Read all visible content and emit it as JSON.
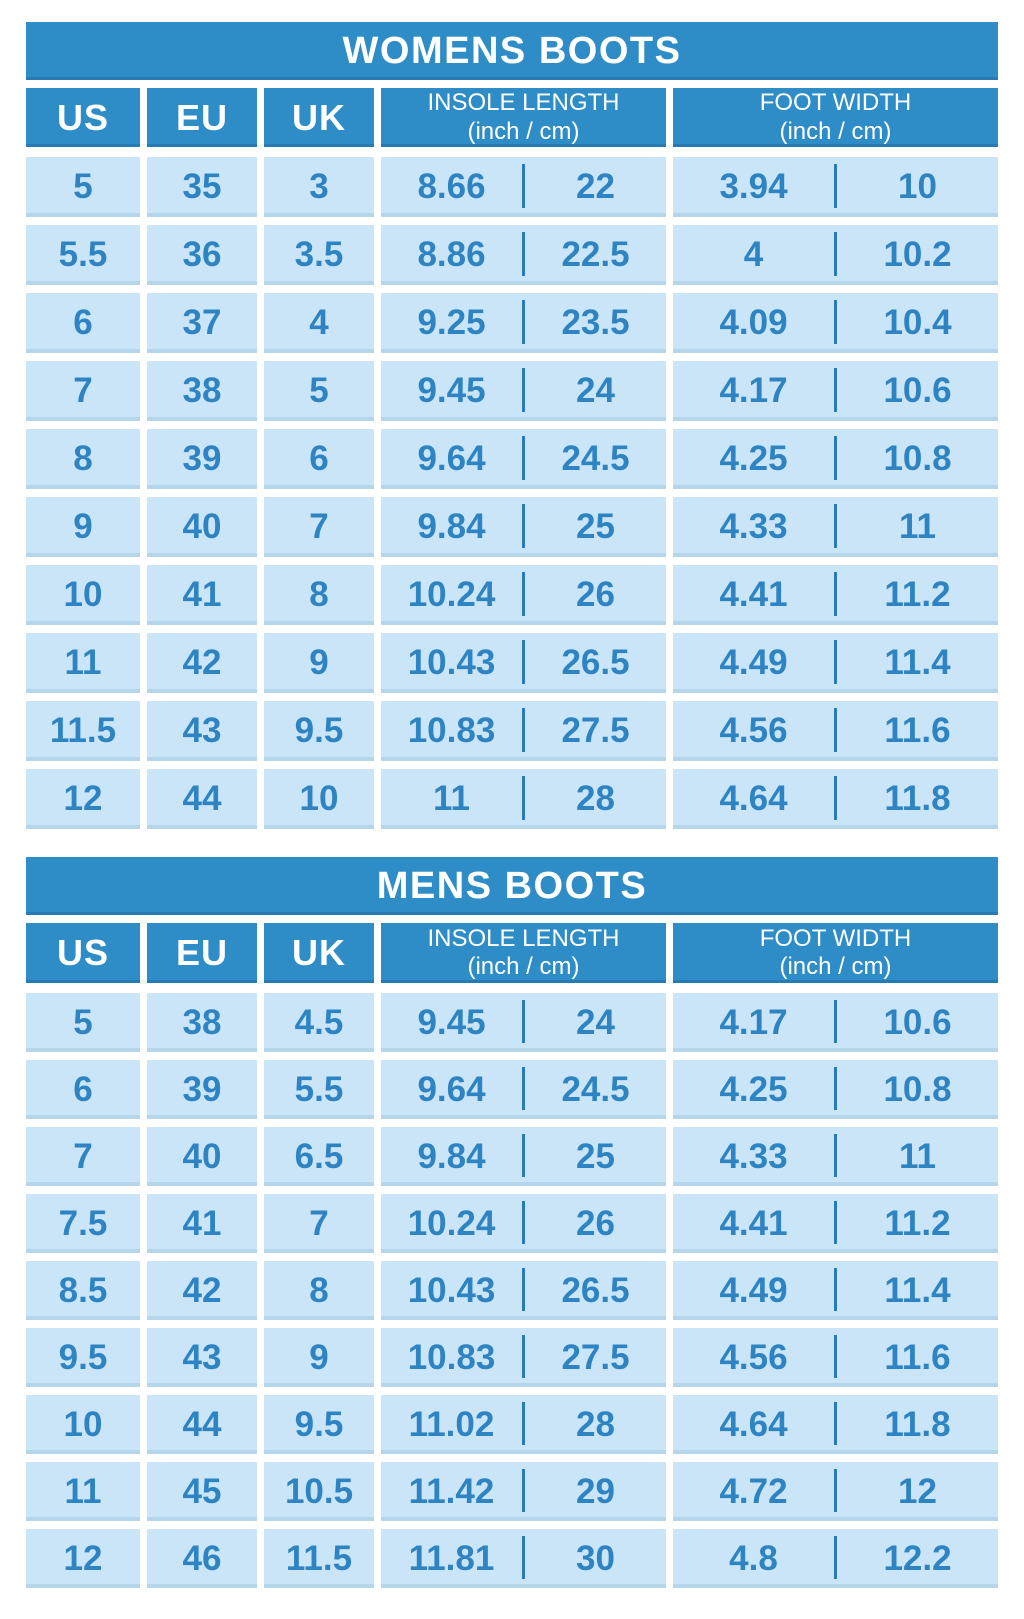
{
  "colors": {
    "header_blue": "#2e8cc7",
    "cell_light_blue": "#c9e5f7",
    "text_blue": "#2e84c2",
    "page_background": "#ffffff"
  },
  "tables": [
    {
      "title": "WOMENS BOOTS",
      "headers": {
        "us": "US",
        "eu": "EU",
        "uk": "UK",
        "insole": "INSOLE LENGTH",
        "insole_sub": "(inch / cm)",
        "foot": "FOOT WIDTH",
        "foot_sub": "(inch / cm)"
      },
      "rows": [
        {
          "us": "5",
          "eu": "35",
          "uk": "3",
          "insole_inch": "8.66",
          "insole_cm": "22",
          "width_inch": "3.94",
          "width_cm": "10"
        },
        {
          "us": "5.5",
          "eu": "36",
          "uk": "3.5",
          "insole_inch": "8.86",
          "insole_cm": "22.5",
          "width_inch": "4",
          "width_cm": "10.2"
        },
        {
          "us": "6",
          "eu": "37",
          "uk": "4",
          "insole_inch": "9.25",
          "insole_cm": "23.5",
          "width_inch": "4.09",
          "width_cm": "10.4"
        },
        {
          "us": "7",
          "eu": "38",
          "uk": "5",
          "insole_inch": "9.45",
          "insole_cm": "24",
          "width_inch": "4.17",
          "width_cm": "10.6"
        },
        {
          "us": "8",
          "eu": "39",
          "uk": "6",
          "insole_inch": "9.64",
          "insole_cm": "24.5",
          "width_inch": "4.25",
          "width_cm": "10.8"
        },
        {
          "us": "9",
          "eu": "40",
          "uk": "7",
          "insole_inch": "9.84",
          "insole_cm": "25",
          "width_inch": "4.33",
          "width_cm": "11"
        },
        {
          "us": "10",
          "eu": "41",
          "uk": "8",
          "insole_inch": "10.24",
          "insole_cm": "26",
          "width_inch": "4.41",
          "width_cm": "11.2"
        },
        {
          "us": "11",
          "eu": "42",
          "uk": "9",
          "insole_inch": "10.43",
          "insole_cm": "26.5",
          "width_inch": "4.49",
          "width_cm": "11.4"
        },
        {
          "us": "11.5",
          "eu": "43",
          "uk": "9.5",
          "insole_inch": "10.83",
          "insole_cm": "27.5",
          "width_inch": "4.56",
          "width_cm": "11.6"
        },
        {
          "us": "12",
          "eu": "44",
          "uk": "10",
          "insole_inch": "11",
          "insole_cm": "28",
          "width_inch": "4.64",
          "width_cm": "11.8"
        }
      ]
    },
    {
      "title": "MENS BOOTS",
      "headers": {
        "us": "US",
        "eu": "EU",
        "uk": "UK",
        "insole": "INSOLE LENGTH",
        "insole_sub": "(inch / cm)",
        "foot": "FOOT WIDTH",
        "foot_sub": "(inch / cm)"
      },
      "rows": [
        {
          "us": "5",
          "eu": "38",
          "uk": "4.5",
          "insole_inch": "9.45",
          "insole_cm": "24",
          "width_inch": "4.17",
          "width_cm": "10.6"
        },
        {
          "us": "6",
          "eu": "39",
          "uk": "5.5",
          "insole_inch": "9.64",
          "insole_cm": "24.5",
          "width_inch": "4.25",
          "width_cm": "10.8"
        },
        {
          "us": "7",
          "eu": "40",
          "uk": "6.5",
          "insole_inch": "9.84",
          "insole_cm": "25",
          "width_inch": "4.33",
          "width_cm": "11"
        },
        {
          "us": "7.5",
          "eu": "41",
          "uk": "7",
          "insole_inch": "10.24",
          "insole_cm": "26",
          "width_inch": "4.41",
          "width_cm": "11.2"
        },
        {
          "us": "8.5",
          "eu": "42",
          "uk": "8",
          "insole_inch": "10.43",
          "insole_cm": "26.5",
          "width_inch": "4.49",
          "width_cm": "11.4"
        },
        {
          "us": "9.5",
          "eu": "43",
          "uk": "9",
          "insole_inch": "10.83",
          "insole_cm": "27.5",
          "width_inch": "4.56",
          "width_cm": "11.6"
        },
        {
          "us": "10",
          "eu": "44",
          "uk": "9.5",
          "insole_inch": "11.02",
          "insole_cm": "28",
          "width_inch": "4.64",
          "width_cm": "11.8"
        },
        {
          "us": "11",
          "eu": "45",
          "uk": "10.5",
          "insole_inch": "11.42",
          "insole_cm": "29",
          "width_inch": "4.72",
          "width_cm": "12"
        },
        {
          "us": "12",
          "eu": "46",
          "uk": "11.5",
          "insole_inch": "11.81",
          "insole_cm": "30",
          "width_inch": "4.8",
          "width_cm": "12.2"
        }
      ]
    }
  ],
  "chart_data": [
    {
      "type": "table",
      "title": "WOMENS BOOTS",
      "columns": [
        "US",
        "EU",
        "UK",
        "INSOLE LENGTH (inch)",
        "INSOLE LENGTH (cm)",
        "FOOT WIDTH (inch)",
        "FOOT WIDTH (cm)"
      ],
      "rows": [
        [
          "5",
          "35",
          "3",
          "8.66",
          "22",
          "3.94",
          "10"
        ],
        [
          "5.5",
          "36",
          "3.5",
          "8.86",
          "22.5",
          "4",
          "10.2"
        ],
        [
          "6",
          "37",
          "4",
          "9.25",
          "23.5",
          "4.09",
          "10.4"
        ],
        [
          "7",
          "38",
          "5",
          "9.45",
          "24",
          "4.17",
          "10.6"
        ],
        [
          "8",
          "39",
          "6",
          "9.64",
          "24.5",
          "4.25",
          "10.8"
        ],
        [
          "9",
          "40",
          "7",
          "9.84",
          "25",
          "4.33",
          "11"
        ],
        [
          "10",
          "41",
          "8",
          "10.24",
          "26",
          "4.41",
          "11.2"
        ],
        [
          "11",
          "42",
          "9",
          "10.43",
          "26.5",
          "4.49",
          "11.4"
        ],
        [
          "11.5",
          "43",
          "9.5",
          "10.83",
          "27.5",
          "4.56",
          "11.6"
        ],
        [
          "12",
          "44",
          "10",
          "11",
          "28",
          "4.64",
          "11.8"
        ]
      ]
    },
    {
      "type": "table",
      "title": "MENS BOOTS",
      "columns": [
        "US",
        "EU",
        "UK",
        "INSOLE LENGTH (inch)",
        "INSOLE LENGTH (cm)",
        "FOOT WIDTH (inch)",
        "FOOT WIDTH (cm)"
      ],
      "rows": [
        [
          "5",
          "38",
          "4.5",
          "9.45",
          "24",
          "4.17",
          "10.6"
        ],
        [
          "6",
          "39",
          "5.5",
          "9.64",
          "24.5",
          "4.25",
          "10.8"
        ],
        [
          "7",
          "40",
          "6.5",
          "9.84",
          "25",
          "4.33",
          "11"
        ],
        [
          "7.5",
          "41",
          "7",
          "10.24",
          "26",
          "4.41",
          "11.2"
        ],
        [
          "8.5",
          "42",
          "8",
          "10.43",
          "26.5",
          "4.49",
          "11.4"
        ],
        [
          "9.5",
          "43",
          "9",
          "10.83",
          "27.5",
          "4.56",
          "11.6"
        ],
        [
          "10",
          "44",
          "9.5",
          "11.02",
          "28",
          "4.64",
          "11.8"
        ],
        [
          "11",
          "45",
          "10.5",
          "11.42",
          "29",
          "4.72",
          "12"
        ],
        [
          "12",
          "46",
          "11.5",
          "11.81",
          "30",
          "4.8",
          "12.2"
        ]
      ]
    }
  ]
}
